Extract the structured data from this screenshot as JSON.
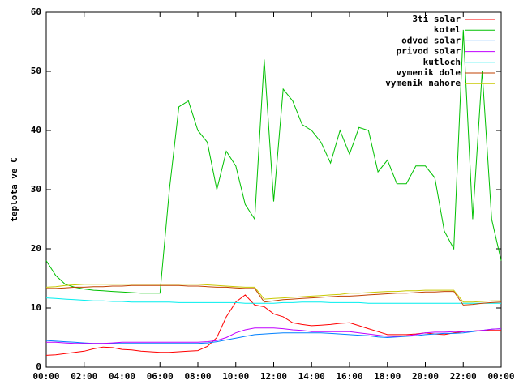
{
  "chart_data": {
    "type": "line",
    "ylabel": "teplota ve C",
    "xlim": [
      0,
      24
    ],
    "ylim": [
      0,
      60
    ],
    "xticks": [
      {
        "value": 0,
        "label": "00:00"
      },
      {
        "value": 2,
        "label": "02:00"
      },
      {
        "value": 4,
        "label": "04:00"
      },
      {
        "value": 6,
        "label": "06:00"
      },
      {
        "value": 8,
        "label": "08:00"
      },
      {
        "value": 10,
        "label": "10:00"
      },
      {
        "value": 12,
        "label": "12:00"
      },
      {
        "value": 14,
        "label": "14:00"
      },
      {
        "value": 16,
        "label": "16:00"
      },
      {
        "value": 18,
        "label": "18:00"
      },
      {
        "value": 20,
        "label": "20:00"
      },
      {
        "value": 22,
        "label": "22:00"
      },
      {
        "value": 24,
        "label": "00:00"
      }
    ],
    "yticks": [
      0,
      10,
      20,
      30,
      40,
      50,
      60
    ],
    "grid": false,
    "legend": "upper right",
    "x": [
      0,
      0.5,
      1,
      1.5,
      2,
      2.5,
      3,
      3.5,
      4,
      4.5,
      5,
      5.5,
      6,
      6.5,
      7,
      7.5,
      8,
      8.5,
      9,
      9.5,
      10,
      10.5,
      11,
      11.5,
      12,
      12.5,
      13,
      13.5,
      14,
      14.5,
      15,
      15.5,
      16,
      16.5,
      17,
      17.5,
      18,
      18.5,
      19,
      19.5,
      20,
      20.5,
      21,
      21.5,
      22,
      22.5,
      23,
      23.5,
      24
    ],
    "series": [
      {
        "name": "3ti solar",
        "color": "#ff0000",
        "values": [
          2.0,
          2.1,
          2.3,
          2.5,
          2.7,
          3.1,
          3.4,
          3.3,
          3.0,
          2.9,
          2.7,
          2.6,
          2.5,
          2.5,
          2.6,
          2.7,
          2.8,
          3.5,
          5,
          8.5,
          11,
          12.2,
          10.5,
          10.2,
          9,
          8.5,
          7.5,
          7.2,
          7,
          7.1,
          7.2,
          7.4,
          7.5,
          7,
          6.5,
          6,
          5.5,
          5.5,
          5.5,
          5.6,
          5.8,
          5.6,
          5.5,
          5.8,
          6,
          6.1,
          6.2,
          6.2,
          6.2
        ]
      },
      {
        "name": "kotel",
        "color": "#00c000",
        "values": [
          18,
          15.5,
          14,
          13.5,
          13.2,
          13,
          12.9,
          12.8,
          12.7,
          12.6,
          12.5,
          12.5,
          12.5,
          30,
          44,
          45,
          40,
          38,
          30,
          36.5,
          34,
          27.5,
          25,
          52,
          28,
          47,
          45,
          41,
          40,
          38,
          34.5,
          40,
          36,
          40.5,
          40,
          33,
          35,
          31,
          31,
          34,
          34,
          32,
          23,
          20,
          57,
          25,
          50,
          25,
          18
        ]
      },
      {
        "name": "odvod solar",
        "color": "#0080ff",
        "values": [
          4.5,
          4.4,
          4.3,
          4.2,
          4.1,
          4.0,
          4.0,
          4.0,
          4.0,
          4.0,
          4.0,
          4.0,
          4.0,
          4.0,
          4.0,
          4.0,
          4.0,
          4.1,
          4.3,
          4.6,
          4.9,
          5.2,
          5.5,
          5.6,
          5.7,
          5.8,
          5.8,
          5.8,
          5.8,
          5.8,
          5.7,
          5.6,
          5.5,
          5.4,
          5.3,
          5.1,
          5.0,
          5.1,
          5.2,
          5.3,
          5.5,
          5.6,
          5.7,
          5.7,
          5.8,
          6.0,
          6.2,
          6.4,
          6.5
        ]
      },
      {
        "name": "privod solar",
        "color": "#c000ff",
        "values": [
          4.2,
          4.2,
          4.1,
          4.0,
          4.0,
          4.0,
          4.0,
          4.1,
          4.2,
          4.2,
          4.2,
          4.2,
          4.2,
          4.2,
          4.2,
          4.2,
          4.2,
          4.3,
          4.5,
          5.0,
          5.8,
          6.3,
          6.6,
          6.6,
          6.6,
          6.5,
          6.3,
          6.2,
          6.0,
          6.0,
          6.0,
          6.0,
          6.0,
          5.8,
          5.6,
          5.4,
          5.2,
          5.2,
          5.3,
          5.5,
          5.8,
          5.9,
          5.9,
          6.0,
          6.0,
          6.1,
          6.2,
          6.4,
          6.5
        ]
      },
      {
        "name": "kutloch",
        "color": "#00eeee",
        "values": [
          11.7,
          11.6,
          11.5,
          11.4,
          11.3,
          11.2,
          11.2,
          11.1,
          11.1,
          11.0,
          11.0,
          11.0,
          11.0,
          11.0,
          10.9,
          10.9,
          10.9,
          10.9,
          10.9,
          10.9,
          10.9,
          10.8,
          10.8,
          10.8,
          10.8,
          10.9,
          10.9,
          11.0,
          11.0,
          11.0,
          10.9,
          10.9,
          10.9,
          10.9,
          10.8,
          10.8,
          10.8,
          10.8,
          10.8,
          10.8,
          10.8,
          10.8,
          10.8,
          10.8,
          10.8,
          10.8,
          10.8,
          10.8,
          10.8
        ]
      },
      {
        "name": "vymenik dole",
        "color": "#c04000",
        "values": [
          13.3,
          13.3,
          13.4,
          13.5,
          13.5,
          13.6,
          13.6,
          13.7,
          13.7,
          13.8,
          13.8,
          13.8,
          13.8,
          13.8,
          13.8,
          13.7,
          13.7,
          13.6,
          13.5,
          13.5,
          13.4,
          13.3,
          13.3,
          11.0,
          11.2,
          11.4,
          11.5,
          11.6,
          11.7,
          11.8,
          11.9,
          12.0,
          12.0,
          12.1,
          12.2,
          12.3,
          12.4,
          12.5,
          12.5,
          12.6,
          12.7,
          12.7,
          12.8,
          12.8,
          10.5,
          10.6,
          10.8,
          10.9,
          11.0
        ]
      },
      {
        "name": "vymenik nahore",
        "color": "#c8c800",
        "values": [
          13.5,
          13.6,
          13.8,
          13.9,
          14.0,
          14.0,
          14.0,
          14.0,
          14.0,
          14.0,
          14.0,
          14.0,
          14.0,
          14.0,
          14.0,
          14.0,
          14.0,
          13.9,
          13.8,
          13.7,
          13.6,
          13.5,
          13.5,
          11.5,
          11.6,
          11.7,
          11.8,
          11.9,
          12.0,
          12.1,
          12.2,
          12.3,
          12.5,
          12.5,
          12.6,
          12.7,
          12.8,
          12.8,
          12.9,
          12.9,
          13.0,
          13.0,
          13.0,
          13.0,
          11.0,
          11.0,
          11.1,
          11.2,
          11.2
        ]
      }
    ]
  }
}
